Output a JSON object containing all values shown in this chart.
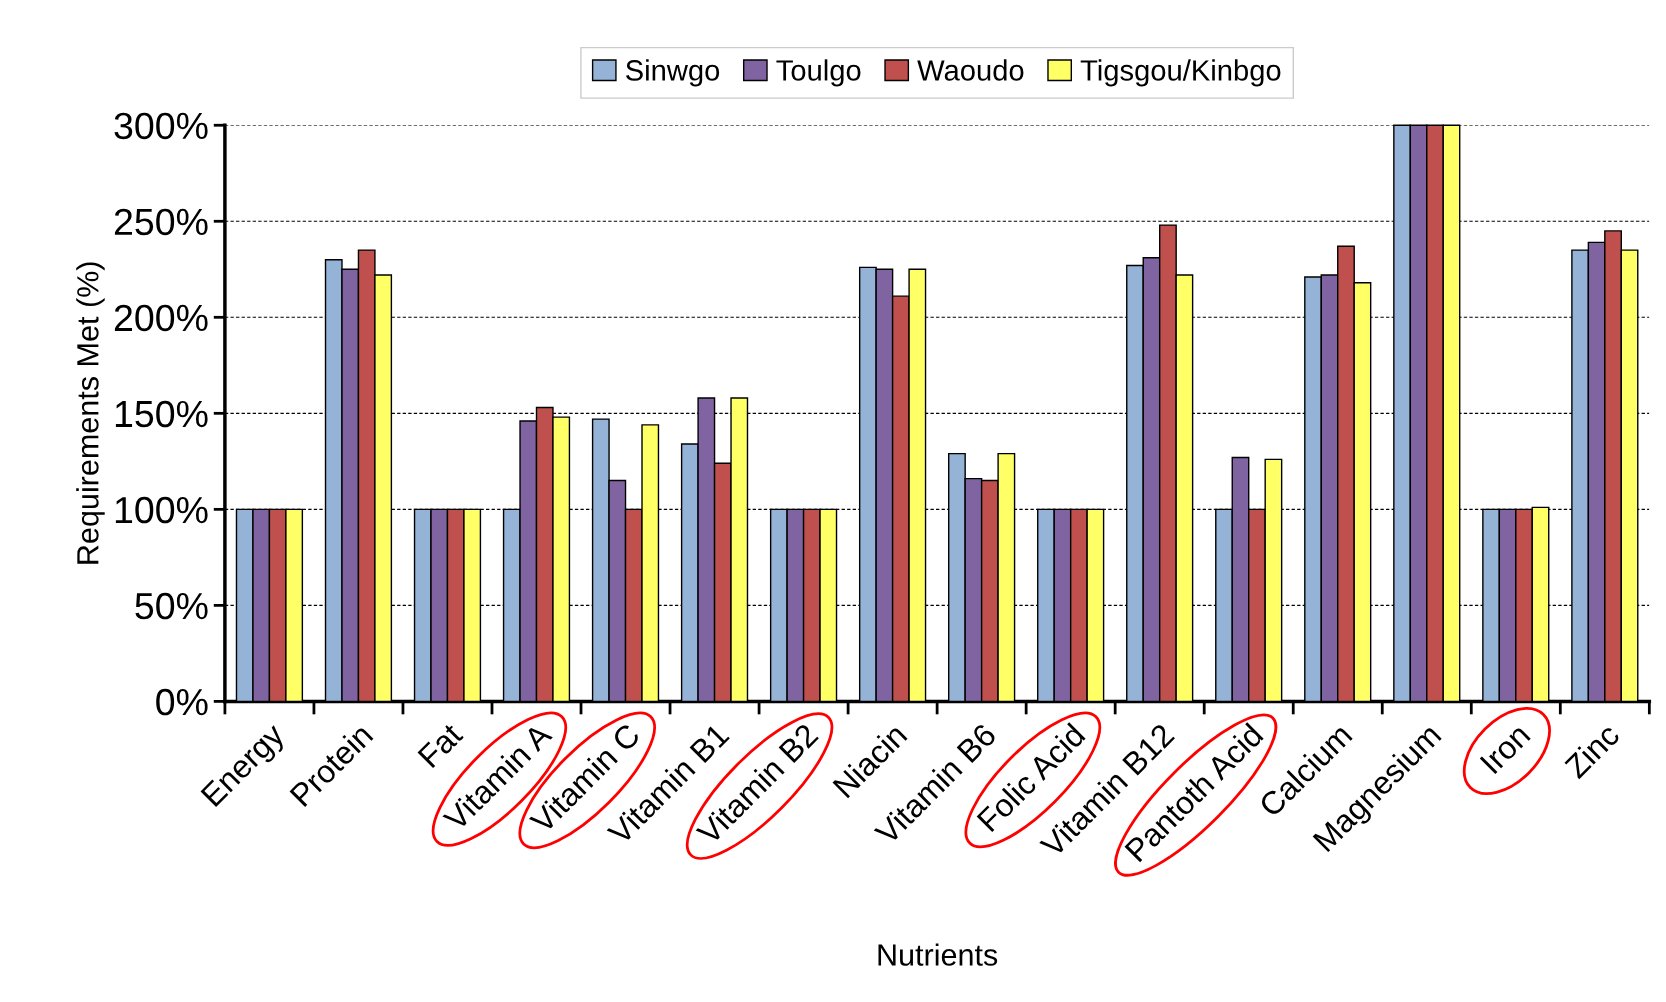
{
  "chart_data": {
    "type": "bar",
    "xlabel": "Nutrients",
    "ylabel": "Requirements Met (%)",
    "categories": [
      "Energy",
      "Protein",
      "Fat",
      "Vitamin A",
      "Vitamin C",
      "Vitamin B1",
      "Vitamin B2",
      "Niacin",
      "Vitamin B6",
      "Folic Acid",
      "Vitamin B12",
      "Pantoth Acid",
      "Calcium",
      "Magnesium",
      "Iron",
      "Zinc"
    ],
    "series": [
      {
        "name": "Sinwgo",
        "color": "#95b3d7",
        "values": [
          100,
          230,
          100,
          100,
          147,
          134,
          100,
          226,
          129,
          100,
          227,
          100,
          221,
          300,
          100,
          235
        ]
      },
      {
        "name": "Toulgo",
        "color": "#8064a2",
        "values": [
          100,
          225,
          100,
          146,
          115,
          158,
          100,
          225,
          116,
          100,
          231,
          127,
          222,
          300,
          100,
          239
        ]
      },
      {
        "name": "Waoudo",
        "color": "#c0504d",
        "values": [
          100,
          235,
          100,
          153,
          100,
          124,
          100,
          211,
          115,
          100,
          248,
          100,
          237,
          300,
          100,
          245
        ]
      },
      {
        "name": "Tigsgou/Kinbgo",
        "color": "#ffff66",
        "values": [
          100,
          222,
          100,
          148,
          144,
          158,
          100,
          225,
          129,
          100,
          222,
          126,
          218,
          300,
          101,
          235
        ]
      }
    ],
    "ylim": [
      0,
      300
    ],
    "yticks": [
      {
        "value": 0,
        "label": "0%"
      },
      {
        "value": 50,
        "label": "50%"
      },
      {
        "value": 100,
        "label": "100%"
      },
      {
        "value": 150,
        "label": "150%"
      },
      {
        "value": 200,
        "label": "200%"
      },
      {
        "value": 250,
        "label": "250%"
      },
      {
        "value": 300,
        "label": "300%"
      }
    ],
    "grid": "y",
    "legend": "top"
  }
}
